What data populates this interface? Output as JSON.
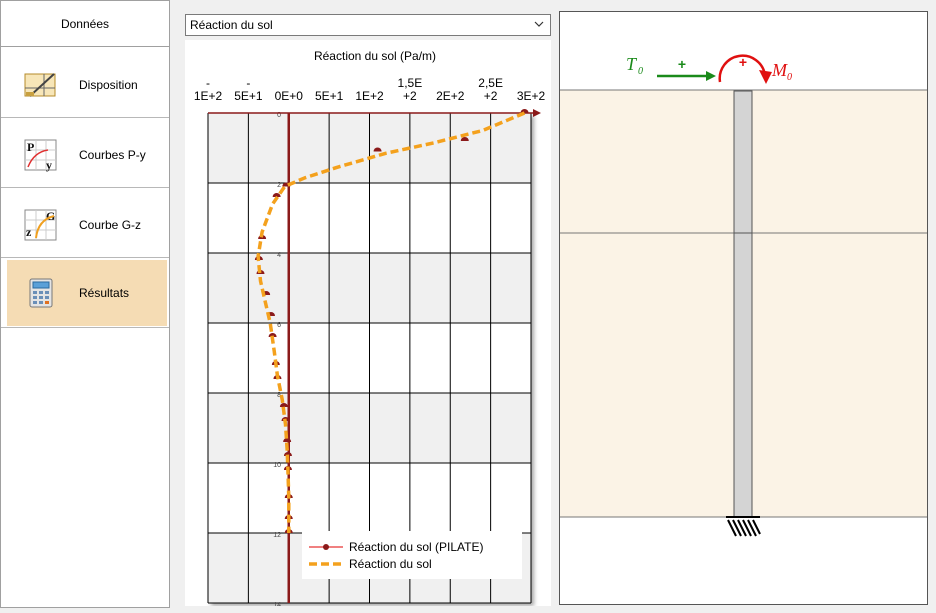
{
  "sidebar": {
    "header": "Données",
    "items": [
      {
        "label": "Disposition",
        "icon": "layout-ruler-icon",
        "selected": false
      },
      {
        "label": "Courbes P-y",
        "icon": "py-curve-icon",
        "selected": false
      },
      {
        "label": "Courbe G-z",
        "icon": "gz-curve-icon",
        "selected": false
      },
      {
        "label": "Résultats",
        "icon": "calculator-icon",
        "selected": true
      }
    ]
  },
  "dropdown": {
    "selected": "Réaction du sol"
  },
  "chart_data": {
    "type": "line",
    "title": "Réaction du sol (Pa/m)",
    "x_tick_labels": [
      [
        "-",
        "1E+2"
      ],
      [
        "-",
        "5E+1"
      ],
      [
        "",
        "0E+0"
      ],
      [
        "",
        "5E+1"
      ],
      [
        "",
        "1E+2"
      ],
      [
        "1,5E",
        "+2"
      ],
      [
        "2E+2"
      ],
      [
        "2,5E",
        "+2"
      ],
      [
        "3E+2"
      ]
    ],
    "y_tick_labels": [
      "0",
      "2",
      "4",
      "6",
      "8",
      "10",
      "12",
      "14"
    ],
    "xlim": [
      -100,
      300
    ],
    "ylim": [
      0,
      14
    ],
    "y_inverted": true,
    "grid": true,
    "legend_position": "bottom-right",
    "series": [
      {
        "name": "Réaction du sol (PILATE)",
        "color": "#8b1a1a",
        "marker": "semicircle",
        "points": [
          [
            292,
            0
          ],
          [
            218,
            0.8
          ],
          [
            110,
            1.1
          ],
          [
            -3,
            2.1
          ],
          [
            -15,
            2.4
          ],
          [
            -33,
            3.6
          ],
          [
            -37,
            4.2
          ],
          [
            -35,
            4.6
          ],
          [
            -28,
            5.2
          ],
          [
            -22,
            5.8
          ],
          [
            -20,
            6.4
          ],
          [
            -16,
            7.2
          ],
          [
            -14,
            7.6
          ],
          [
            -6,
            8.4
          ],
          [
            -4,
            8.8
          ],
          [
            -2,
            9.4
          ],
          [
            -1,
            9.8
          ],
          [
            -1,
            10.2
          ],
          [
            0,
            11
          ],
          [
            0,
            11.6
          ],
          [
            0,
            12
          ]
        ]
      },
      {
        "name": "Réaction du sol",
        "color": "#f4a11d",
        "marker": "none",
        "dashed": true,
        "points": [
          [
            292,
            0
          ],
          [
            240,
            0.5
          ],
          [
            180,
            0.85
          ],
          [
            120,
            1.15
          ],
          [
            60,
            1.55
          ],
          [
            20,
            1.85
          ],
          [
            -5,
            2.1
          ],
          [
            -20,
            2.6
          ],
          [
            -33,
            3.4
          ],
          [
            -38,
            4.1
          ],
          [
            -35,
            4.8
          ],
          [
            -29,
            5.4
          ],
          [
            -23,
            6.0
          ],
          [
            -18,
            6.8
          ],
          [
            -14,
            7.5
          ],
          [
            -8,
            8.2
          ],
          [
            -4,
            8.9
          ],
          [
            -2,
            9.6
          ],
          [
            -1,
            10.2
          ],
          [
            0,
            11
          ],
          [
            0,
            12
          ]
        ]
      }
    ]
  },
  "diagram": {
    "t0_label": "T",
    "t0_sub": "0",
    "m0_label": "M",
    "m0_sub": "0",
    "plus_sign": "+",
    "colors": {
      "force": "#1a8a1a",
      "moment": "#e01010",
      "soil": "#fbf3e6",
      "pile": "#d4d4d4"
    }
  }
}
